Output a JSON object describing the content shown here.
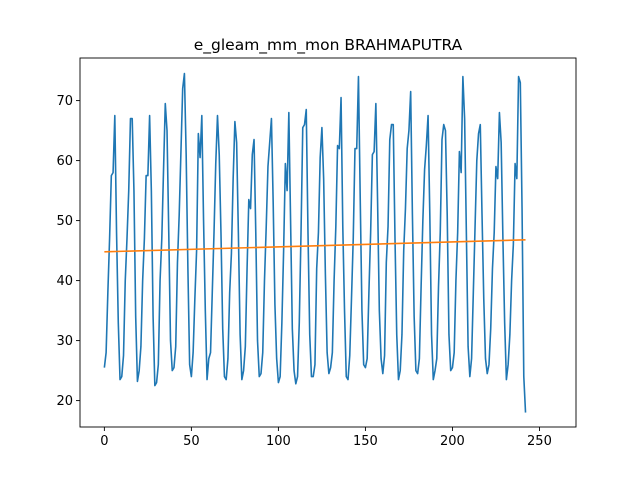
{
  "chart_data": {
    "type": "line",
    "title": "e_gleam_mm_mon BRAHMAPUTRA",
    "xlabel": "",
    "ylabel": "",
    "xlim": [
      -14,
      271
    ],
    "ylim": [
      15.6,
      77.1
    ],
    "x_ticks": [
      0,
      50,
      100,
      150,
      200,
      250
    ],
    "y_ticks": [
      20,
      30,
      40,
      50,
      60,
      70
    ],
    "grid": false,
    "series": [
      {
        "color": "#1f77b4",
        "values": [
          25.5,
          28,
          38,
          47,
          57.5,
          58,
          67.5,
          48,
          33,
          23.5,
          24,
          27.5,
          40,
          47,
          55,
          67,
          67,
          55,
          34,
          23.2,
          25,
          29,
          40,
          47,
          57.5,
          57.5,
          67.5,
          55,
          34,
          22.5,
          23,
          26,
          40,
          47,
          58.5,
          69.5,
          65,
          48,
          30,
          25,
          25.5,
          29,
          43,
          51,
          61.5,
          72,
          74.5,
          61,
          42,
          26,
          24,
          28,
          37,
          45,
          64.5,
          60.5,
          67.5,
          50,
          35,
          23.5,
          27,
          28,
          38,
          48,
          59.5,
          67.5,
          61,
          48,
          32,
          24,
          23.5,
          27,
          38,
          44.5,
          57,
          66.5,
          63,
          48,
          31,
          23.5,
          25,
          29,
          42,
          53.5,
          52,
          61,
          63.5,
          48,
          30,
          24,
          24.5,
          28,
          40,
          49,
          59,
          63,
          67,
          53,
          36,
          27,
          23,
          24,
          33,
          45,
          59.5,
          55,
          68,
          50,
          32,
          25,
          22.8,
          24,
          33,
          48,
          65.5,
          66,
          68.5,
          48,
          31,
          24,
          24,
          26,
          42,
          48,
          60.5,
          65.5,
          57,
          41,
          28,
          24.5,
          25.5,
          28,
          40,
          49,
          62.5,
          62,
          70.5,
          49,
          35,
          24,
          23.5,
          27.5,
          37,
          47,
          62,
          62,
          74,
          54,
          35,
          26,
          25.5,
          27,
          38,
          48,
          61,
          61.5,
          69.5,
          53,
          35,
          27,
          24.5,
          27.5,
          43,
          49,
          63.5,
          66,
          66,
          47,
          31,
          23.5,
          25,
          31,
          45,
          52,
          62,
          65,
          71.5,
          51,
          34,
          25,
          24.5,
          27,
          39,
          50,
          58.5,
          62.5,
          67.5,
          51,
          31,
          23.5,
          25,
          27,
          39,
          48,
          63.5,
          66,
          65,
          51,
          31,
          25,
          25.5,
          28,
          40,
          48,
          61.5,
          58,
          74,
          67,
          48,
          29,
          24,
          27,
          38,
          49,
          60,
          64.5,
          66,
          51,
          37,
          27,
          24.5,
          26,
          32,
          42,
          48,
          59,
          57,
          68,
          63,
          47,
          33,
          23.5,
          26,
          31,
          40,
          46,
          59.5,
          57,
          74,
          73,
          52,
          24,
          18
        ]
      },
      {
        "color": "#ff7f0e",
        "values": [
          44.8,
          46.8
        ]
      }
    ]
  }
}
